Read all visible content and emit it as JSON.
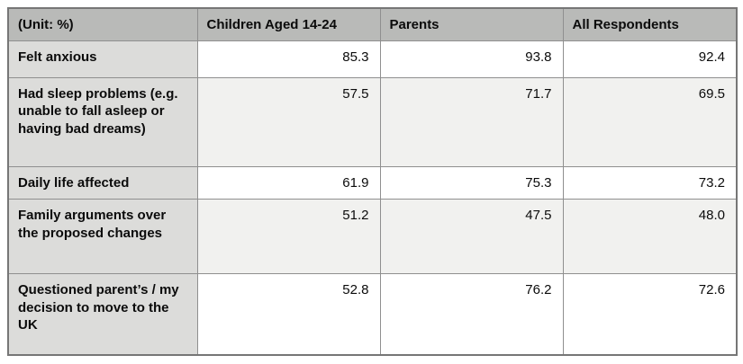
{
  "table": {
    "unit_label": "(Unit: %)",
    "columns": [
      "Children Aged 14-24",
      "Parents",
      "All Respondents"
    ],
    "rows": [
      {
        "label": "Felt anxious",
        "values": [
          "85.3",
          "93.8",
          "92.4"
        ]
      },
      {
        "label": "Had sleep problems (e.g. unable to fall asleep or having bad dreams)",
        "values": [
          "57.5",
          "71.7",
          "69.5"
        ]
      },
      {
        "label": "Daily life affected",
        "values": [
          "61.9",
          "75.3",
          "73.2"
        ]
      },
      {
        "label": "Family arguments over the proposed changes",
        "values": [
          "51.2",
          "47.5",
          "48.0"
        ]
      },
      {
        "label": "Questioned parent’s / my decision to move to the UK",
        "values": [
          "52.8",
          "76.2",
          "72.6"
        ]
      }
    ]
  },
  "colors": {
    "header_bg": "#b9bab8",
    "label_column_bg": "#dcdcda",
    "alt_row_bg": "#f1f1ef",
    "row_bg": "#ffffff",
    "inner_border": "#8f8f8f",
    "outer_border": "#767676",
    "text": "#0b0b0b"
  },
  "chart_data": {
    "type": "table",
    "title": "",
    "unit": "(Unit: %)",
    "categories": [
      "Felt anxious",
      "Had sleep problems (e.g. unable to fall asleep or having bad dreams)",
      "Daily life affected",
      "Family arguments over the proposed changes",
      "Questioned parent’s / my decision to move to the UK"
    ],
    "series": [
      {
        "name": "Children Aged 14-24",
        "values": [
          85.3,
          57.5,
          61.9,
          51.2,
          52.8
        ]
      },
      {
        "name": "Parents",
        "values": [
          93.8,
          71.7,
          75.3,
          47.5,
          76.2
        ]
      },
      {
        "name": "All Respondents",
        "values": [
          92.4,
          69.5,
          73.2,
          48.0,
          72.6
        ]
      }
    ]
  }
}
